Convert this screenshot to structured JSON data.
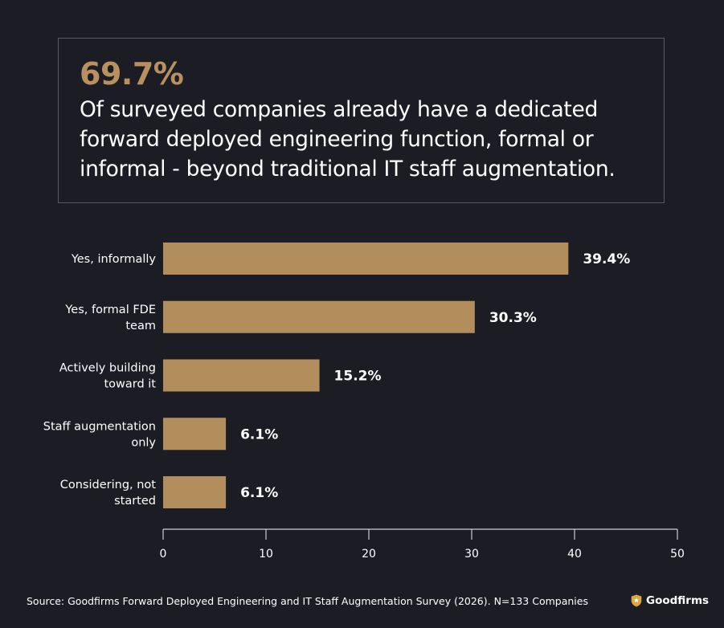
{
  "callout": {
    "stat": "69.7%",
    "headline": "Of surveyed companies already have a dedicated forward deployed engineering function, formal or informal - beyond traditional IT staff augmentation."
  },
  "chart_data": {
    "type": "bar",
    "orientation": "horizontal",
    "categories": [
      [
        "Yes, informally"
      ],
      [
        "Yes, formal FDE",
        "team"
      ],
      [
        "Actively building",
        "toward it"
      ],
      [
        "Staff augmentation",
        "only"
      ],
      [
        "Considering, not",
        "started"
      ]
    ],
    "values": [
      39.4,
      30.3,
      15.2,
      6.1,
      6.1
    ],
    "value_labels": [
      "39.4%",
      "30.3%",
      "15.2%",
      "6.1%",
      "6.1%"
    ],
    "xlim": [
      0,
      50
    ],
    "xticks": [
      0,
      10,
      20,
      30,
      40,
      50
    ],
    "grid": false,
    "bar_color": "#b18e5b",
    "axis_color": "#cfcfcf"
  },
  "footer": {
    "source": "Source: Goodfirms Forward Deployed Engineering and IT Staff Augmentation Survey (2026). N=133 Companies",
    "brand": "Goodfirms",
    "brand_icon": "shield-star-icon"
  },
  "colors": {
    "background": "#1c1d24",
    "accent": "#b99160",
    "text": "#ffffff"
  }
}
